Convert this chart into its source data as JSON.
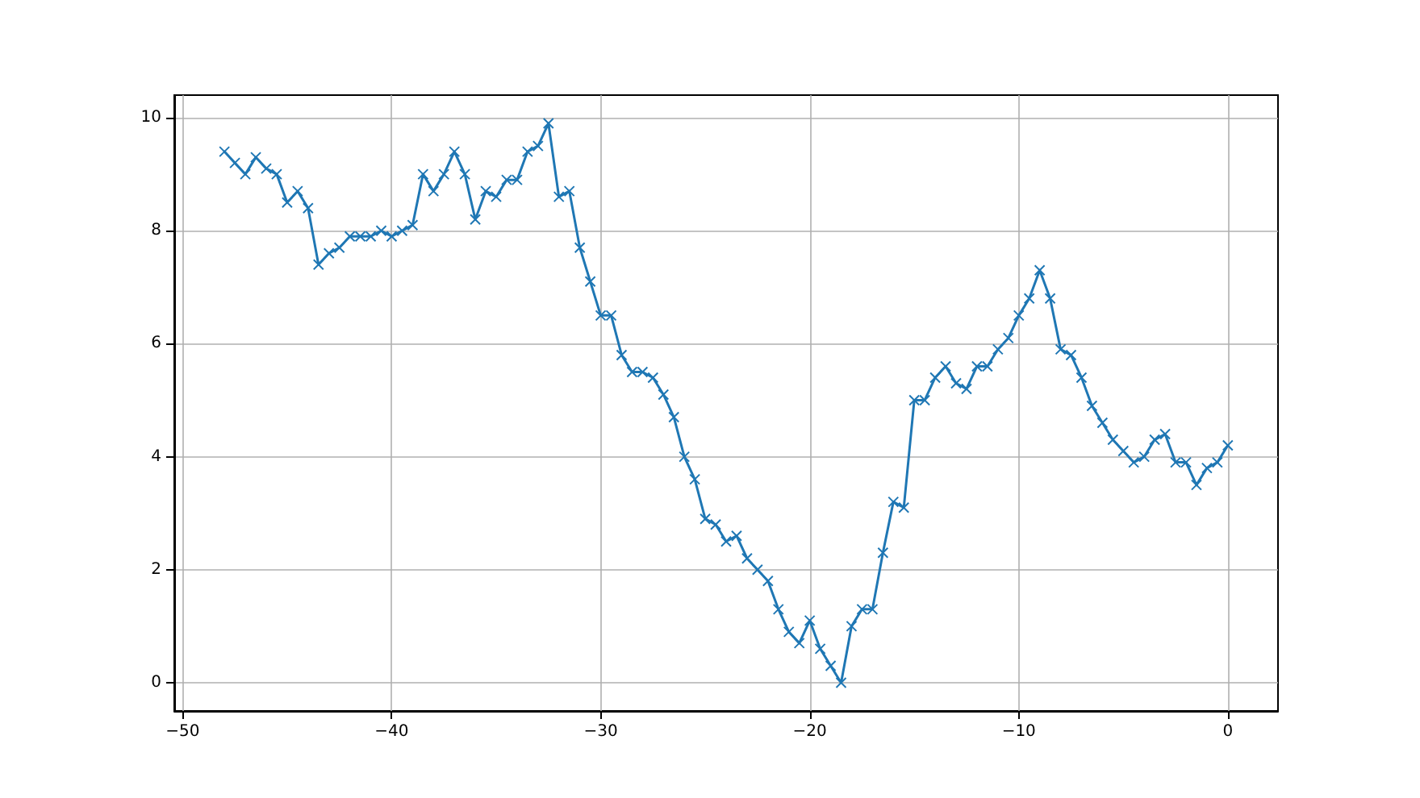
{
  "chart_data": {
    "type": "line",
    "x": [
      -48,
      -47.5,
      -47,
      -46.5,
      -46,
      -45.5,
      -45,
      -44.5,
      -44,
      -43.5,
      -43,
      -42.5,
      -42,
      -41.5,
      -41,
      -40.5,
      -40,
      -39.5,
      -39,
      -38.5,
      -38,
      -37.5,
      -37,
      -36.5,
      -36,
      -35.5,
      -35,
      -34.5,
      -34,
      -33.5,
      -33,
      -32.5,
      -32,
      -31.5,
      -31,
      -30.5,
      -30,
      -29.5,
      -29,
      -28.5,
      -28,
      -27.5,
      -27,
      -26.5,
      -26,
      -25.5,
      -25,
      -24.5,
      -24,
      -23.5,
      -23,
      -22.5,
      -22,
      -21.5,
      -21,
      -20.5,
      -20,
      -19.5,
      -19,
      -18.5,
      -18,
      -17.5,
      -17,
      -16.5,
      -16,
      -15.5,
      -15,
      -14.5,
      -14,
      -13.5,
      -13,
      -12.5,
      -12,
      -11.5,
      -11,
      -10.5,
      -10,
      -9.5,
      -9,
      -8.5,
      -8,
      -7.5,
      -7,
      -6.5,
      -6,
      -5.5,
      -5,
      -4.5,
      -4,
      -3.5,
      -3,
      -2.5,
      -2,
      -1.5,
      -1,
      -0.5,
      0
    ],
    "series": [
      {
        "color": "#1f77b4",
        "values": [
          9.4,
          9.2,
          9.0,
          9.3,
          9.1,
          9.0,
          8.5,
          8.7,
          8.4,
          7.4,
          7.6,
          7.7,
          7.9,
          7.9,
          7.9,
          8.0,
          7.9,
          8.0,
          8.1,
          9.0,
          8.7,
          9.0,
          9.4,
          9.0,
          8.2,
          8.7,
          8.6,
          8.9,
          8.9,
          9.4,
          9.5,
          9.9,
          8.6,
          8.7,
          7.7,
          7.1,
          6.5,
          6.5,
          5.8,
          5.5,
          5.5,
          5.4,
          5.1,
          4.7,
          4.0,
          3.6,
          2.9,
          2.8,
          2.5,
          2.6,
          2.2,
          2.0,
          1.8,
          1.3,
          0.9,
          0.7,
          1.1,
          0.6,
          0.3,
          0.0,
          1.0,
          1.3,
          1.3,
          2.3,
          3.2,
          3.1,
          5.0,
          5.0,
          5.4,
          5.6,
          5.3,
          5.2,
          5.6,
          5.6,
          5.9,
          6.1,
          6.5,
          6.8,
          7.3,
          6.8,
          5.9,
          5.8,
          5.4,
          4.9,
          4.6,
          4.3,
          4.1,
          3.9,
          4.0,
          4.3,
          4.4,
          3.9,
          3.9,
          3.5,
          3.8,
          3.9,
          4.2
        ]
      }
    ],
    "xlim": [
      -50.4,
      2.4
    ],
    "xticks": [
      {
        "value": -50,
        "label": "−50"
      },
      {
        "value": -40,
        "label": "−40"
      },
      {
        "value": -30,
        "label": "−30"
      },
      {
        "value": -20,
        "label": "−20"
      },
      {
        "value": -10,
        "label": "−10"
      },
      0
    ],
    "ylim": [
      -0.5,
      10.4
    ],
    "yticks": [
      0,
      2,
      4,
      6,
      8,
      10
    ],
    "grid": true,
    "marker": "cross",
    "line_style": "solid"
  }
}
